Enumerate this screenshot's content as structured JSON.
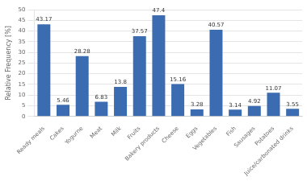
{
  "chart_data": {
    "type": "bar",
    "categories": [
      "Ready meals",
      "Cakes",
      "Yogurne",
      "Meat",
      "Milk",
      "Fruits",
      "Bakery products",
      "Cheese",
      "Eggs",
      "Vegetables",
      "Fish",
      "Sausages",
      "Potatoes",
      "Juice/carbonated drinks"
    ],
    "values": [
      43.17,
      5.46,
      28.28,
      6.83,
      13.8,
      37.57,
      47.4,
      15.16,
      3.28,
      40.57,
      3.14,
      4.92,
      11.07,
      3.55
    ],
    "color": "#3B6BB0",
    "ylabel": "Relative Frequency [%]",
    "ylim": [
      0,
      50
    ],
    "yticks": [
      0,
      5,
      10,
      15,
      20,
      25,
      30,
      35,
      40,
      45,
      50
    ],
    "grid": true,
    "data_labels": true
  }
}
